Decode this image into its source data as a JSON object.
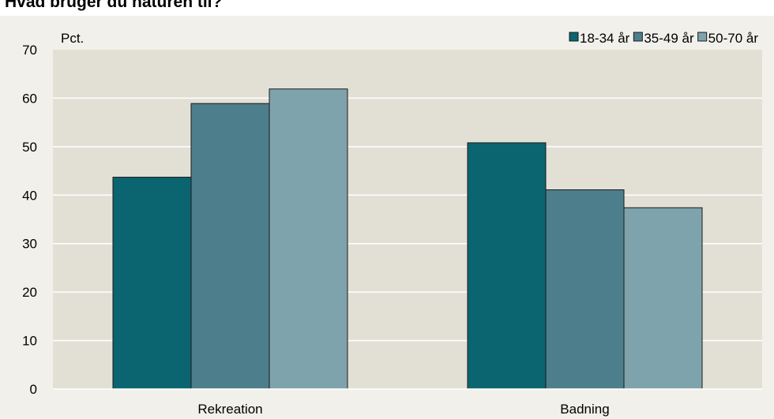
{
  "title": "Hvad bruger du naturen til?",
  "chart_data": {
    "type": "bar",
    "ylabel": "Pct.",
    "xlabel": "",
    "ylim": [
      0,
      70
    ],
    "yticks": [
      0,
      10,
      20,
      30,
      40,
      50,
      60,
      70
    ],
    "grid": true,
    "legend_position": "top-right",
    "categories": [
      "Rekreation",
      "Badning"
    ],
    "series": [
      {
        "name": "18-34 år",
        "values": [
          43.7,
          50.8
        ],
        "color": "#0a6570"
      },
      {
        "name": "35-49 år",
        "values": [
          58.9,
          41.1
        ],
        "color": "#4d7e8b"
      },
      {
        "name": "50-70 år",
        "values": [
          61.9,
          37.4
        ],
        "color": "#7ea3ac"
      }
    ],
    "colors": {
      "plot_bg": "#e2e0d5",
      "frame_bg": "#f1f0eb",
      "gridline": "#ffffff"
    }
  }
}
